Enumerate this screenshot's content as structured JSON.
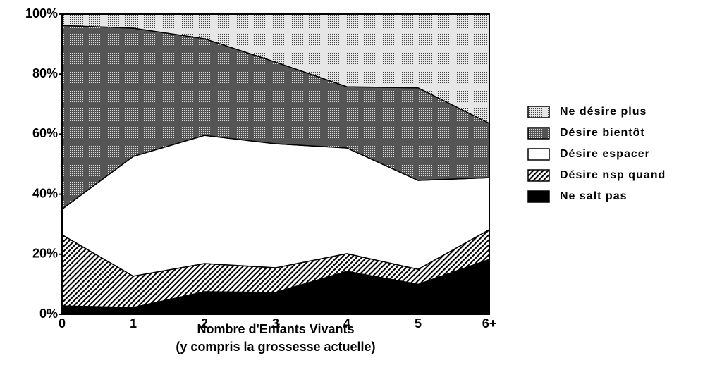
{
  "chart_data": {
    "type": "stacked_area",
    "categories": [
      "0",
      "1",
      "2",
      "3",
      "4",
      "5",
      "6+"
    ],
    "xlabel": "Nombre d'Enfants Vivants",
    "xlabel_note": "(y compris la grossesse actuelle)",
    "ylim": [
      0,
      100
    ],
    "yticks": [
      {
        "value": 0,
        "label": "0%"
      },
      {
        "value": 20,
        "label": "20%"
      },
      {
        "value": 40,
        "label": "40%"
      },
      {
        "value": 60,
        "label": "60%"
      },
      {
        "value": 80,
        "label": "80%"
      },
      {
        "value": 100,
        "label": "100%"
      }
    ],
    "series": [
      {
        "name": "Ne salt pas",
        "color": "#000000",
        "pattern": "solid",
        "values": [
          2.8,
          2.3,
          7.5,
          7.3,
          14.3,
          10,
          18.3
        ]
      },
      {
        "name": "Désire nsp quand",
        "color": "#000000",
        "pattern": "hatch",
        "values": [
          23.7,
          10.4,
          9.4,
          8.2,
          5.9,
          5,
          9.9
        ]
      },
      {
        "name": "Désire espacer",
        "color": "#ffffff",
        "pattern": "solid",
        "values": [
          8.5,
          39.9,
          42.7,
          41.3,
          35.2,
          29.6,
          17.3
        ]
      },
      {
        "name": "Désire bientôt",
        "color": "#555555",
        "pattern": "dense-dots",
        "values": [
          61.2,
          42.7,
          32.2,
          27.2,
          20.4,
          30.8,
          18.1
        ]
      },
      {
        "name": "Ne désire plus",
        "color": "#999999",
        "pattern": "light-dots",
        "values": [
          3.8,
          4.7,
          8.2,
          16,
          24.2,
          24.6,
          36.4
        ]
      }
    ]
  }
}
